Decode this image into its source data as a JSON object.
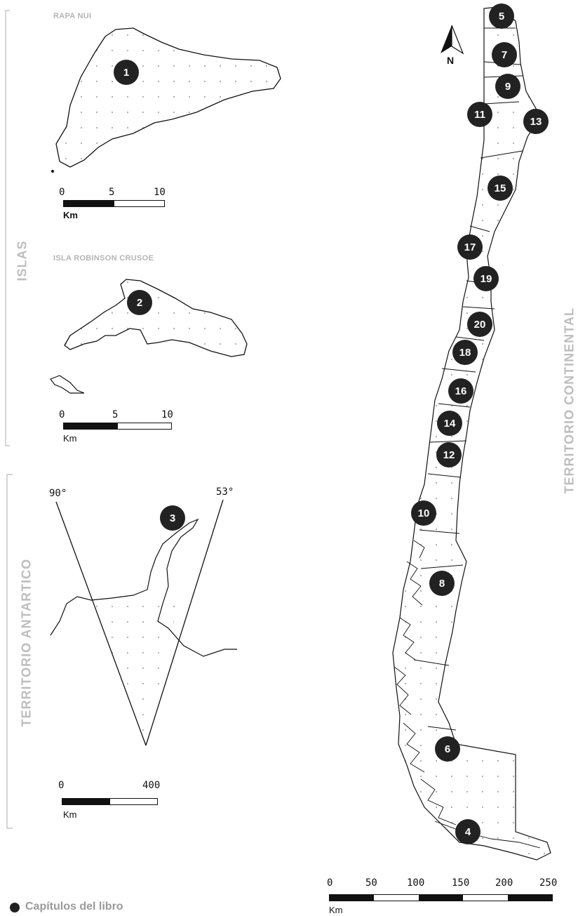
{
  "labels": {
    "islas": "ISLAS",
    "territorio_antartico": "TERRITORIO ANTARTICO",
    "territorio_continental": "TERRITORIO CONTINENTAL"
  },
  "insets": {
    "rapa_nui": {
      "title": "RAPA NUI",
      "scale_ticks": [
        "0",
        "5",
        "10"
      ],
      "unit": "Km"
    },
    "robinson": {
      "title": "ISLA ROBINSON CRUSOE",
      "scale_ticks": [
        "0",
        "5",
        "10"
      ],
      "unit": "Km"
    },
    "antartica": {
      "angle_left": "90°",
      "angle_right": "53°",
      "scale_ticks": [
        "0",
        "400"
      ],
      "unit": "Km"
    }
  },
  "north_arrow": {
    "label": "N"
  },
  "main_scale": {
    "ticks": [
      "0",
      "50",
      "100",
      "150",
      "200",
      "250"
    ],
    "unit": "Km"
  },
  "legend": {
    "label": "Capítulos del libro"
  },
  "markers": [
    "1",
    "2",
    "3",
    "4",
    "5",
    "6",
    "7",
    "8",
    "9",
    "10",
    "11",
    "12",
    "13",
    "14",
    "15",
    "16",
    "17",
    "18",
    "19",
    "20"
  ],
  "colors": {
    "marker": "#222222",
    "side_label": "#bdbdbd",
    "outline": "#111111",
    "dots": "#aaaaaa"
  }
}
